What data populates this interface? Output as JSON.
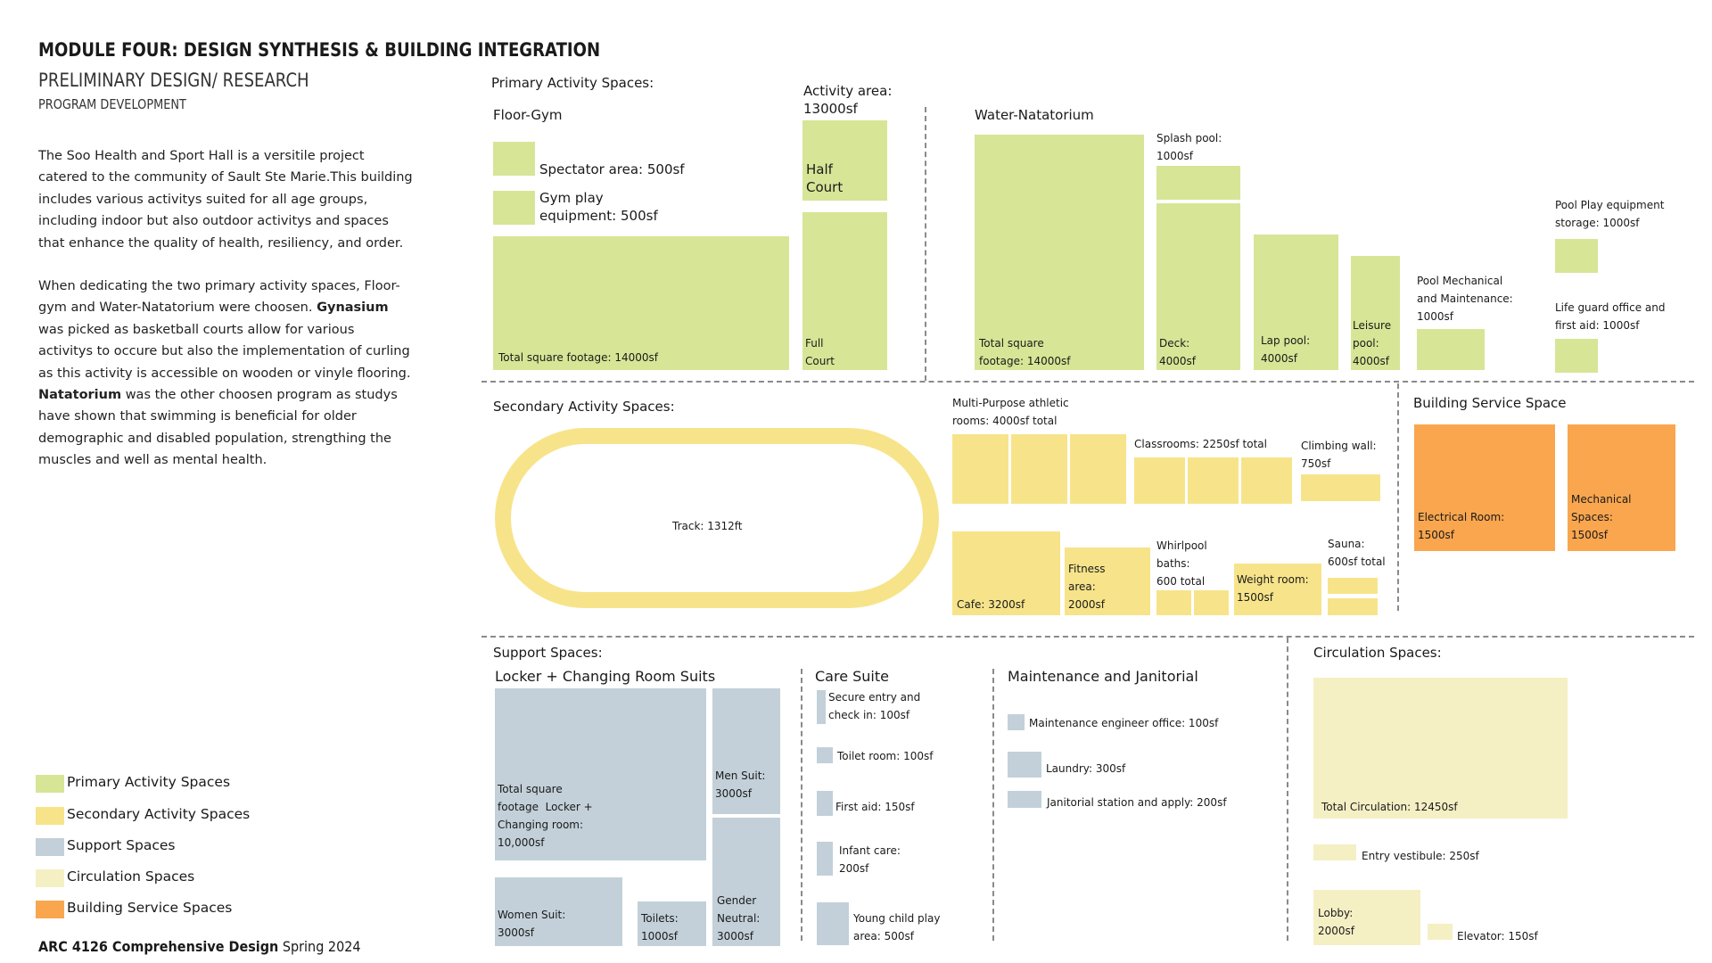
{
  "header": {
    "title": "MODULE FOUR: DESIGN SYNTHESIS & BUILDING INTEGRATION",
    "subtitle": "PRELIMINARY DESIGN/ RESEARCH",
    "section": "PROGRAM DEVELOPMENT"
  },
  "intro": {
    "p1": "The Soo Health and Sport Hall is a versitile project catered to the community of Sault Ste Marie.This building includes various activitys suited for all age groups, including indoor but also outdoor activitys and spaces that enhance the quality of health, resiliency, and order.",
    "p2_a": "When dedicating the two primary activity spaces, Floor-gym and Water-Natatorium were choosen. ",
    "p2_bold1": "Gynasium",
    "p2_b": " was picked as basketball courts allow for various activitys to occure but also the implementation of curling as this activity is accessible on wooden or vinyle flooring. ",
    "p2_bold2": "Natatorium",
    "p2_c": " was the other choosen program as studys have shown that swimming is beneficial for older demographic and disabled population, strengthing the muscles and well as mental health."
  },
  "legend": {
    "primary": "Primary Activity Spaces",
    "secondary": "Secondary Activity Spaces",
    "support": "Support Spaces",
    "circulation": "Circulation Spaces",
    "service": "Building Service Spaces",
    "colors": {
      "primary": "#d7e596",
      "secondary": "#f7e48a",
      "support": "#c3d0d9",
      "circulation": "#f5efc4",
      "service": "#f9a64e"
    }
  },
  "footer": {
    "course": "ARC 4126 Comprehensive Design",
    "term": " Spring 2024"
  },
  "primary": {
    "heading": "Primary Activity Spaces:",
    "floor_gym": "Floor-Gym",
    "spectator": "Spectator area: 500sf",
    "gym_play": "Gym play\nequipment: 500sf",
    "total_gym": "Total square footage: 14000sf",
    "activity_area": "Activity area:\n13000sf",
    "half_court": "Half\nCourt",
    "full_court": "Full\nCourt",
    "water": "Water-Natatorium",
    "total_nat": "Total square\nfootage: 14000sf",
    "splash": "Splash pool:\n1000sf",
    "deck": "Deck:\n4000sf",
    "lap": "Lap pool:\n4000sf",
    "leisure": "Leisure\npool:\n4000sf",
    "pool_mech": "Pool Mechanical\nand Maintenance:\n1000sf",
    "pool_play": "Pool Play equipment\nstorage: 1000sf",
    "lifeguard": "Life guard office and\nfirst aid: 1000sf"
  },
  "secondary": {
    "heading": "Secondary Activity Spaces:",
    "track": "Track: 1312ft",
    "multi": "Multi-Purpose athletic\nrooms: 4000sf total",
    "classrooms": "Classrooms: 2250sf total",
    "climbing": "Climbing wall:\n750sf",
    "cafe": "Cafe: 3200sf",
    "fitness": "Fitness\narea:\n2000sf",
    "whirlpool": "Whirlpool\nbaths:\n600 total",
    "weight": "Weight room:\n1500sf",
    "sauna": "Sauna:\n600sf total"
  },
  "service": {
    "heading": "Building Service Space",
    "electrical": "Electrical Room:\n1500sf",
    "mechanical": "Mechanical\nSpaces:\n1500sf"
  },
  "support": {
    "heading": "Support Spaces:",
    "locker": "Locker + Changing Room Suits",
    "total_locker": "Total square\nfootage  Locker +\nChanging room:\n10,000sf",
    "men": "Men Suit:\n3000sf",
    "women": "Women Suit:\n3000sf",
    "toilets": "Toilets:\n1000sf",
    "gender": "Gender\nNeutral:\n3000sf",
    "care": "Care Suite",
    "secure": "Secure entry and\ncheck in: 100sf",
    "toilet_room": "Toilet room: 100sf",
    "first_aid": "First aid: 150sf",
    "infant": "Infant care:\n200sf",
    "young": "Young child play\narea: 500sf",
    "maint": "Maintenance and Janitorial",
    "maint_office": "Maintenance engineer office: 100sf",
    "laundry": "Laundry: 300sf",
    "janitorial": "Janitorial station and apply: 200sf"
  },
  "circulation": {
    "heading": "Circulation Spaces:",
    "total": "Total Circulation: 12450sf",
    "vestibule": "Entry vestibule: 250sf",
    "lobby": "Lobby:\n2000sf",
    "elevator": "Elevator: 150sf"
  }
}
